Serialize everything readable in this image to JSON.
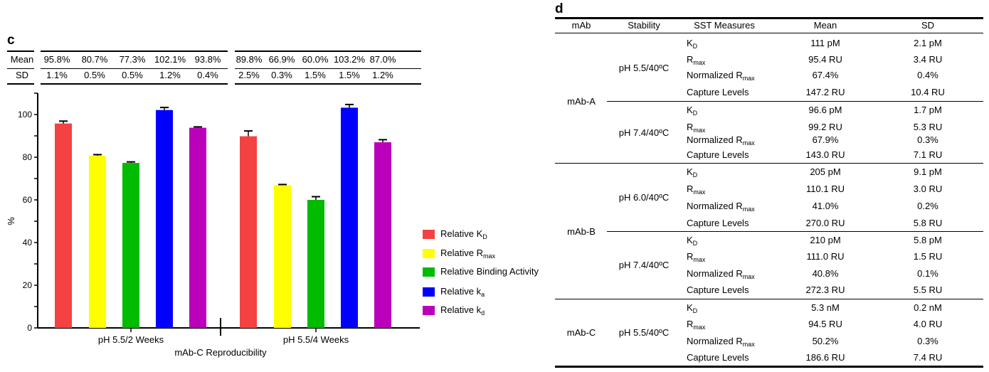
{
  "panel_c": {
    "label": "c",
    "stats": {
      "row_labels": [
        "Mean",
        "SD"
      ],
      "groups": [
        {
          "mean": [
            "95.8%",
            "80.7%",
            "77.3%",
            "102.1%",
            "93.8%"
          ],
          "sd": [
            "1.1%",
            "0.5%",
            "0.5%",
            "1.2%",
            "0.4%"
          ]
        },
        {
          "mean": [
            "89.8%",
            "66.9%",
            "60.0%",
            "103.2%",
            "87.0%"
          ],
          "sd": [
            "2.5%",
            "0.3%",
            "1.5%",
            "1.5%",
            "1.2%"
          ]
        }
      ]
    }
  },
  "chart_data": {
    "type": "bar",
    "title": "",
    "xlabel": "mAb-C Reproducibility",
    "ylabel": "%",
    "ylim": [
      0,
      110
    ],
    "yticks": [
      0,
      20,
      40,
      60,
      80,
      100
    ],
    "categories": [
      "pH 5.5/2 Weeks",
      "pH 5.5/4 Weeks"
    ],
    "legend_position": "right",
    "grid": false,
    "series": [
      {
        "name": "Relative K",
        "sub": "D",
        "color": "#f44242",
        "values": [
          95.8,
          89.8
        ],
        "errors": [
          1.1,
          2.5
        ]
      },
      {
        "name": "Relative R",
        "sub": "max",
        "color": "#ffff00",
        "values": [
          80.7,
          66.9
        ],
        "errors": [
          0.5,
          0.3
        ]
      },
      {
        "name": "Relative Binding Activity",
        "sub": "",
        "color": "#00bb00",
        "values": [
          77.3,
          60.0
        ],
        "errors": [
          0.5,
          1.5
        ]
      },
      {
        "name": "Relative k",
        "sub": "a",
        "color": "#0000ff",
        "values": [
          102.1,
          103.2
        ],
        "errors": [
          1.2,
          1.5
        ]
      },
      {
        "name": "Relative k",
        "sub": "d",
        "color": "#bb00bb",
        "values": [
          93.8,
          87.0
        ],
        "errors": [
          0.4,
          1.2
        ]
      }
    ]
  },
  "panel_d": {
    "label": "d",
    "headers": [
      "mAb",
      "Stability",
      "SST Measures",
      "Mean",
      "SD"
    ],
    "groups": [
      {
        "mab": "mAb-A",
        "conditions": [
          {
            "stability": "pH 5.5/40ºC",
            "rows": [
              {
                "m": "K",
                "sub": "D",
                "mean": "111 pM",
                "sd": "2.1 pM"
              },
              {
                "m": "R",
                "sub": "max",
                "mean": "95.4 RU",
                "sd": "3.4 RU"
              },
              {
                "m": "Normalized R",
                "sub": "max",
                "mean": "67.4%",
                "sd": "0.4%"
              },
              {
                "m": "Capture Levels",
                "sub": "",
                "mean": "147.2 RU",
                "sd": "10.4 RU"
              }
            ]
          },
          {
            "stability": "pH 7.4/40ºC",
            "rows": [
              {
                "m": "K",
                "sub": "D",
                "mean": "96.6 pM",
                "sd": "1.7 pM"
              },
              {
                "m": "R",
                "sub": "max",
                "mean": "99.2 RU",
                "sd": "5.3 RU"
              },
              {
                "m": "Normalized R",
                "sub": "max",
                "mean": "67.9%",
                "sd": "0.3%"
              },
              {
                "m": "Capture Levels",
                "sub": "",
                "mean": "143.0 RU",
                "sd": "7.1 RU"
              }
            ]
          }
        ]
      },
      {
        "mab": "mAb-B",
        "conditions": [
          {
            "stability": "pH 6.0/40ºC",
            "rows": [
              {
                "m": "K",
                "sub": "D",
                "mean": "205 pM",
                "sd": "9.1 pM"
              },
              {
                "m": "R",
                "sub": "max",
                "mean": "110.1 RU",
                "sd": "3.0 RU"
              },
              {
                "m": "Normalized R",
                "sub": "max",
                "mean": "41.0%",
                "sd": "0.2%"
              },
              {
                "m": "Capture Levels",
                "sub": "",
                "mean": "270.0 RU",
                "sd": "5.8 RU"
              }
            ]
          },
          {
            "stability": "pH 7.4/40ºC",
            "rows": [
              {
                "m": "K",
                "sub": "D",
                "mean": "210 pM",
                "sd": "5.8 pM"
              },
              {
                "m": "R",
                "sub": "max",
                "mean": "111.0 RU",
                "sd": "1.5 RU"
              },
              {
                "m": "Normalized R",
                "sub": "max",
                "mean": "40.8%",
                "sd": "0.1%"
              },
              {
                "m": "Capture Levels",
                "sub": "",
                "mean": "272.3 RU",
                "sd": "5.5 RU"
              }
            ]
          }
        ]
      },
      {
        "mab": "mAb-C",
        "conditions": [
          {
            "stability": "pH 5.5/40ºC",
            "rows": [
              {
                "m": "K",
                "sub": "D",
                "mean": "5.3 nM",
                "sd": "0.2 nM"
              },
              {
                "m": "R",
                "sub": "max",
                "mean": "94.5 RU",
                "sd": "4.0 RU"
              },
              {
                "m": "Normalized R",
                "sub": "max",
                "mean": "50.2%",
                "sd": "0.3%"
              },
              {
                "m": "Capture Levels",
                "sub": "",
                "mean": "186.6 RU",
                "sd": "7.4 RU"
              }
            ]
          }
        ]
      }
    ]
  }
}
